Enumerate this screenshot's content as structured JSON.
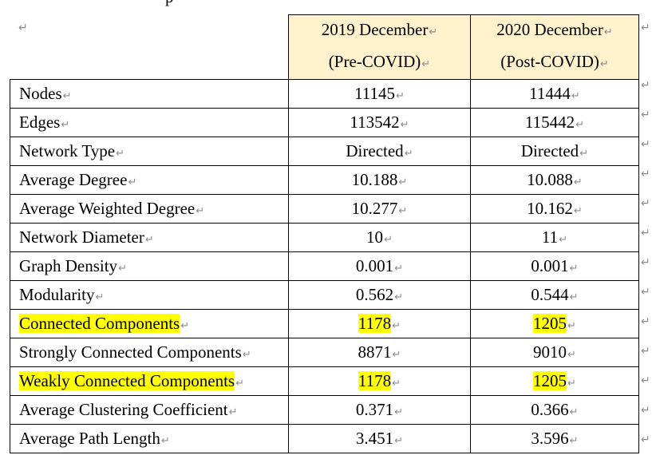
{
  "document": {
    "paragraph_mark": "↵",
    "cutoff_text": "p"
  },
  "table": {
    "header": {
      "col0": "",
      "col1_line1": "2019 December",
      "col1_line2": "(Pre-COVID)",
      "col2_line1": "2020 December",
      "col2_line2": "(Post-COVID)",
      "header_bg": "#FFF2CC"
    },
    "highlight_color": "#FFFF00",
    "rows": [
      {
        "metric": "Nodes",
        "pre": "11145",
        "post": "11444",
        "highlighted": false
      },
      {
        "metric": "Edges",
        "pre": "113542",
        "post": "115442",
        "highlighted": false
      },
      {
        "metric": "Network Type",
        "pre": "Directed",
        "post": "Directed",
        "highlighted": false
      },
      {
        "metric": "Average Degree",
        "pre": "10.188",
        "post": "10.088",
        "highlighted": false
      },
      {
        "metric": "Average Weighted Degree",
        "pre": "10.277",
        "post": "10.162",
        "highlighted": false
      },
      {
        "metric": "Network Diameter",
        "pre": "10",
        "post": "11",
        "highlighted": false
      },
      {
        "metric": "Graph Density",
        "pre": "0.001",
        "post": "0.001",
        "highlighted": false
      },
      {
        "metric": "Modularity",
        "pre": "0.562",
        "post": "0.544",
        "highlighted": false
      },
      {
        "metric": "Connected Components",
        "pre": "1178",
        "post": "1205",
        "highlighted": true
      },
      {
        "metric": "Strongly Connected Components",
        "pre": "8871",
        "post": "9010",
        "highlighted": false
      },
      {
        "metric": "Weakly Connected Components",
        "pre": "1178",
        "post": "1205",
        "highlighted": true
      },
      {
        "metric": "Average Clustering Coefficient",
        "pre": "0.371",
        "post": "0.366",
        "highlighted": false
      },
      {
        "metric": "Average Path Length",
        "pre": "3.451",
        "post": "3.596",
        "highlighted": false
      }
    ]
  }
}
